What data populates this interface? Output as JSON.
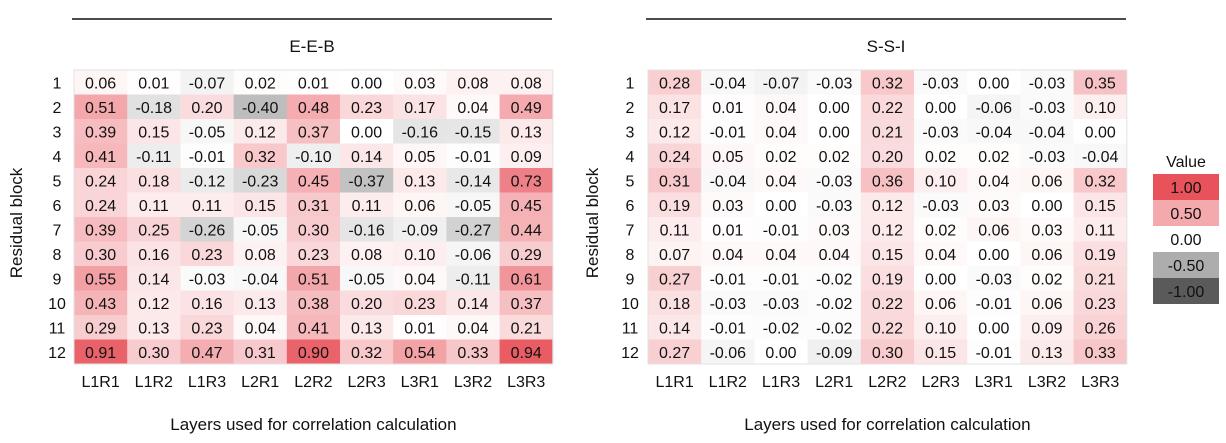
{
  "chart_data": [
    {
      "type": "heatmap",
      "title": "E-E-B",
      "xlabel": "Layers used for correlation calculation",
      "ylabel": "Residual block",
      "x_categories": [
        "L1R1",
        "L1R2",
        "L1R3",
        "L2R1",
        "L2R2",
        "L2R3",
        "L3R1",
        "L3R2",
        "L3R3"
      ],
      "y_categories": [
        "1",
        "2",
        "3",
        "4",
        "5",
        "6",
        "7",
        "8",
        "9",
        "10",
        "11",
        "12"
      ],
      "values": [
        [
          "0.06",
          "0.01",
          "-0.07",
          "0.02",
          "0.01",
          "0.00",
          "0.03",
          "0.08",
          "0.08"
        ],
        [
          "0.51",
          "-0.18",
          "0.20",
          "-0.40",
          "0.48",
          "0.23",
          "0.17",
          "0.04",
          "0.49"
        ],
        [
          "0.39",
          "0.15",
          "-0.05",
          "0.12",
          "0.37",
          "0.00",
          "-0.16",
          "-0.15",
          "0.13"
        ],
        [
          "0.41",
          "-0.11",
          "-0.01",
          "0.32",
          "-0.10",
          "0.14",
          "0.05",
          "-0.01",
          "0.09"
        ],
        [
          "0.24",
          "0.18",
          "-0.12",
          "-0.23",
          "0.45",
          "-0.37",
          "0.13",
          "-0.14",
          "0.73"
        ],
        [
          "0.24",
          "0.11",
          "0.11",
          "0.15",
          "0.31",
          "0.11",
          "0.06",
          "-0.05",
          "0.45"
        ],
        [
          "0.39",
          "0.25",
          "-0.26",
          "-0.05",
          "0.30",
          "-0.16",
          "-0.09",
          "-0.27",
          "0.44"
        ],
        [
          "0.30",
          "0.16",
          "0.23",
          "0.08",
          "0.23",
          "0.08",
          "0.10",
          "-0.06",
          "0.29"
        ],
        [
          "0.55",
          "0.14",
          "-0.03",
          "-0.04",
          "0.51",
          "-0.05",
          "0.04",
          "-0.11",
          "0.61"
        ],
        [
          "0.43",
          "0.12",
          "0.16",
          "0.13",
          "0.38",
          "0.20",
          "0.23",
          "0.14",
          "0.37"
        ],
        [
          "0.29",
          "0.13",
          "0.23",
          "0.04",
          "0.41",
          "0.13",
          "0.01",
          "0.04",
          "0.21"
        ],
        [
          "0.91",
          "0.30",
          "0.47",
          "0.31",
          "0.90",
          "0.32",
          "0.54",
          "0.33",
          "0.94"
        ]
      ]
    },
    {
      "type": "heatmap",
      "title": "S-S-I",
      "xlabel": "Layers used for correlation calculation",
      "ylabel": "Residual block",
      "x_categories": [
        "L1R1",
        "L1R2",
        "L1R3",
        "L2R1",
        "L2R2",
        "L2R3",
        "L3R1",
        "L3R2",
        "L3R3"
      ],
      "y_categories": [
        "1",
        "2",
        "3",
        "4",
        "5",
        "6",
        "7",
        "8",
        "9",
        "10",
        "11",
        "12"
      ],
      "values": [
        [
          "0.28",
          "-0.04",
          "-0.07",
          "-0.03",
          "0.32",
          "-0.03",
          "0.00",
          "-0.03",
          "0.35"
        ],
        [
          "0.17",
          "0.01",
          "0.04",
          "0.00",
          "0.22",
          "0.00",
          "-0.06",
          "-0.03",
          "0.10"
        ],
        [
          "0.12",
          "-0.01",
          "0.04",
          "0.00",
          "0.21",
          "-0.03",
          "-0.04",
          "-0.04",
          "0.00"
        ],
        [
          "0.24",
          "0.05",
          "0.02",
          "0.02",
          "0.20",
          "0.02",
          "0.02",
          "-0.03",
          "-0.04"
        ],
        [
          "0.31",
          "-0.04",
          "0.04",
          "-0.03",
          "0.36",
          "0.10",
          "0.04",
          "0.06",
          "0.32"
        ],
        [
          "0.19",
          "0.03",
          "0.00",
          "-0.03",
          "0.12",
          "-0.03",
          "0.03",
          "0.00",
          "0.15"
        ],
        [
          "0.11",
          "0.01",
          "-0.01",
          "0.03",
          "0.12",
          "0.02",
          "0.06",
          "0.03",
          "0.11"
        ],
        [
          "0.07",
          "0.04",
          "0.04",
          "0.04",
          "0.15",
          "0.04",
          "0.00",
          "0.06",
          "0.19"
        ],
        [
          "0.27",
          "-0.01",
          "-0.01",
          "-0.02",
          "0.19",
          "0.00",
          "-0.03",
          "0.02",
          "0.21"
        ],
        [
          "0.18",
          "-0.03",
          "-0.03",
          "-0.02",
          "0.22",
          "0.06",
          "-0.01",
          "0.06",
          "0.23"
        ],
        [
          "0.14",
          "-0.01",
          "-0.02",
          "-0.02",
          "0.22",
          "0.10",
          "0.00",
          "0.09",
          "0.26"
        ],
        [
          "0.27",
          "-0.06",
          "0.00",
          "-0.09",
          "0.30",
          "0.15",
          "-0.01",
          "0.13",
          "0.33"
        ]
      ]
    }
  ],
  "legend": {
    "title": "Value",
    "entries": [
      "1.00",
      "0.50",
      "0.00",
      "-0.50",
      "-1.00"
    ],
    "entry_values": [
      1.0,
      0.5,
      0.0,
      -0.5,
      -1.0
    ]
  },
  "colors": {
    "positive": "#e8525a",
    "negative": "#5a5a5a",
    "zero": "#ffffff"
  }
}
